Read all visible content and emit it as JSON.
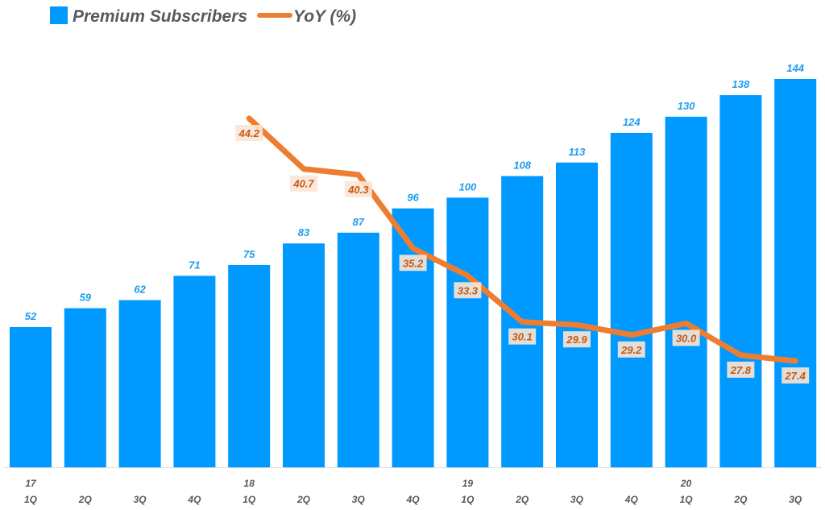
{
  "chart_data": {
    "type": "bar+line",
    "legend_placement": "top-left",
    "grid": false,
    "categories": [
      {
        "year": "17",
        "quarter": "1Q"
      },
      {
        "year": "",
        "quarter": "2Q"
      },
      {
        "year": "",
        "quarter": "3Q"
      },
      {
        "year": "",
        "quarter": "4Q"
      },
      {
        "year": "18",
        "quarter": "1Q"
      },
      {
        "year": "",
        "quarter": "2Q"
      },
      {
        "year": "",
        "quarter": "3Q"
      },
      {
        "year": "",
        "quarter": "4Q"
      },
      {
        "year": "19",
        "quarter": "1Q"
      },
      {
        "year": "",
        "quarter": "2Q"
      },
      {
        "year": "",
        "quarter": "3Q"
      },
      {
        "year": "",
        "quarter": "4Q"
      },
      {
        "year": "20",
        "quarter": "1Q"
      },
      {
        "year": "",
        "quarter": "2Q"
      },
      {
        "year": "",
        "quarter": "3Q"
      }
    ],
    "series": [
      {
        "name": "Premium Subscribers",
        "type": "bar",
        "color": "#0099ff",
        "values": [
          52,
          59,
          62,
          71,
          75,
          83,
          87,
          96,
          100,
          108,
          113,
          124,
          130,
          138,
          144
        ],
        "ylim": [
          0,
          150
        ]
      },
      {
        "name": "YoY (%)",
        "type": "line",
        "color": "#ed7d31",
        "values": [
          null,
          null,
          null,
          null,
          44.2,
          40.7,
          40.3,
          35.2,
          33.3,
          30.1,
          29.9,
          29.2,
          30.0,
          27.8,
          27.4
        ],
        "ylim": [
          0,
          52.6
        ]
      }
    ]
  }
}
